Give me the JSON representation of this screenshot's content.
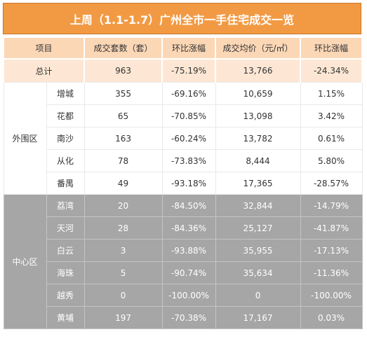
{
  "title": "上周（1.1-1.7）广州全市一手住宅成交一览",
  "headers": [
    "项目",
    "成交套数（套）",
    "环比涨幅",
    "成交均价（元/㎡）",
    "环比涨幅"
  ],
  "total": {
    "label": "总计",
    "units": "963",
    "units_change": "-75.19%",
    "avg_price": "13,766",
    "price_change": "-24.34%"
  },
  "outer": {
    "region": "外围区",
    "rows": [
      {
        "district": "增城",
        "units": "355",
        "units_change": "-69.16%",
        "avg_price": "10,659",
        "price_change": "1.15%"
      },
      {
        "district": "花都",
        "units": "65",
        "units_change": "-70.85%",
        "avg_price": "13,098",
        "price_change": "3.42%"
      },
      {
        "district": "南沙",
        "units": "163",
        "units_change": "-60.24%",
        "avg_price": "13,782",
        "price_change": "0.61%"
      },
      {
        "district": "从化",
        "units": "78",
        "units_change": "-73.83%",
        "avg_price": "8,444",
        "price_change": "5.80%"
      },
      {
        "district": "番禺",
        "units": "49",
        "units_change": "-93.18%",
        "avg_price": "17,365",
        "price_change": "-28.57%"
      }
    ]
  },
  "center": {
    "region": "中心区",
    "rows": [
      {
        "district": "荔湾",
        "units": "20",
        "units_change": "-84.50%",
        "avg_price": "32,844",
        "price_change": "-14.79%"
      },
      {
        "district": "天河",
        "units": "28",
        "units_change": "-84.36%",
        "avg_price": "25,127",
        "price_change": "-41.87%"
      },
      {
        "district": "白云",
        "units": "3",
        "units_change": "-93.88%",
        "avg_price": "35,955",
        "price_change": "-17.13%"
      },
      {
        "district": "海珠",
        "units": "5",
        "units_change": "-90.74%",
        "avg_price": "35,634",
        "price_change": "-11.36%"
      },
      {
        "district": "越秀",
        "units": "0",
        "units_change": "-100.00%",
        "avg_price": "0",
        "price_change": "-100.00%"
      },
      {
        "district": "黄埔",
        "units": "197",
        "units_change": "-70.38%",
        "avg_price": "17,167",
        "price_change": "0.03%"
      }
    ]
  }
}
